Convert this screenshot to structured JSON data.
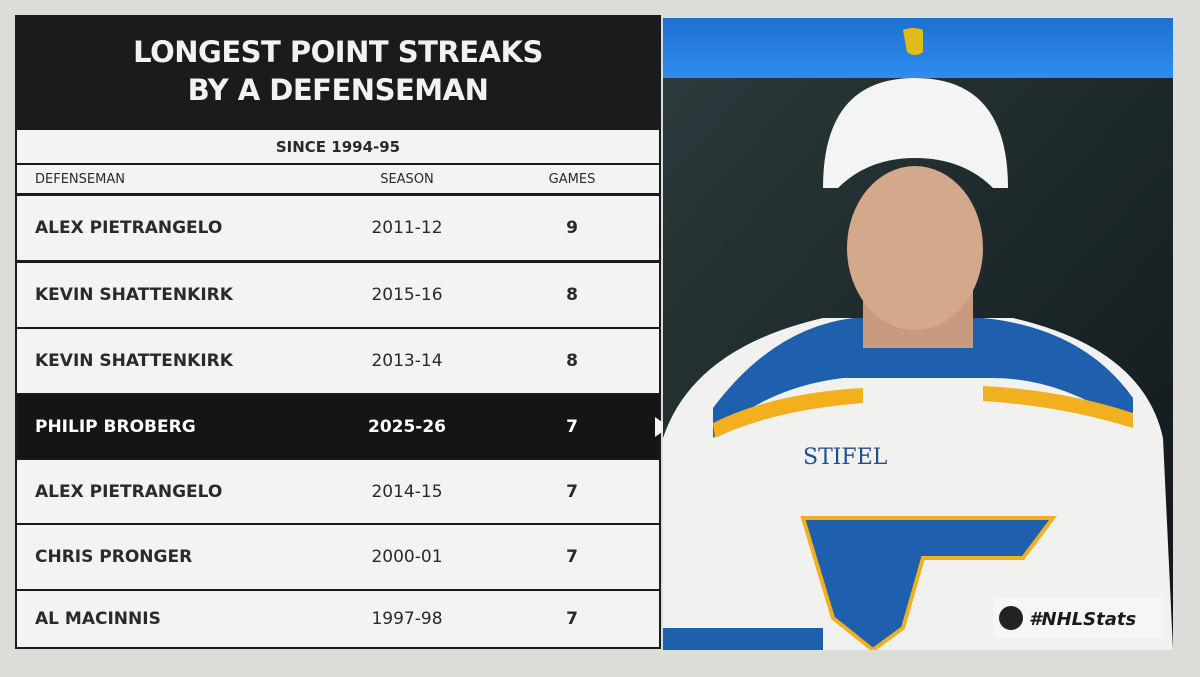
{
  "graphic": {
    "title": [
      "LONGEST POINT STREAKS",
      "BY A DEFENSEMAN"
    ],
    "subtitle": "SINCE 1994-95",
    "columns": [
      "DEFENSEMAN",
      "SEASON",
      "GAMES"
    ],
    "rows": [
      [
        "ALEX PIETRANGELO",
        "2011-12",
        9
      ],
      [
        "KEVIN SHATTENKIRK",
        "2015-16",
        8
      ],
      [
        "KEVIN SHATTENKIRK",
        "2013-14",
        8
      ],
      [
        "PHILIP BROBERG",
        "2025-26",
        7
      ],
      [
        "ALEX PIETRANGELO",
        "2014-15",
        7
      ],
      [
        "CHRIS PRONGER",
        "2000-01",
        7
      ],
      [
        "AL MACINNIS",
        "1997-98",
        7
      ]
    ],
    "highlight_row": 3,
    "jersey_text": "STIFEL",
    "hashtag": "#NHLStats"
  }
}
